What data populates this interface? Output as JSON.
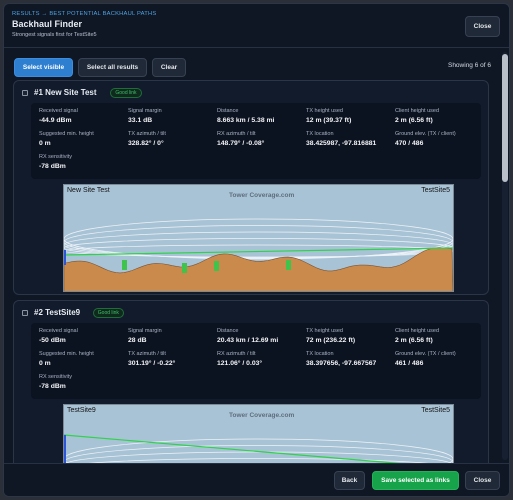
{
  "header": {
    "breadcrumb": "RESULTS → BEST POTENTIAL BACKHAUL PATHS",
    "title": "Backhaul Finder",
    "subtitle": "Strongest signals first for TestSite5",
    "close": "Close"
  },
  "toolbar": {
    "buttons": [
      "Select visible",
      "Select all results",
      "Clear"
    ],
    "status": "Showing 6 of 6"
  },
  "results": [
    {
      "title": "#1 New Site Test",
      "badge": "Good link",
      "fields": [
        {
          "label": "Received signal",
          "value": "-44.9 dBm"
        },
        {
          "label": "Signal margin",
          "value": "33.1 dB"
        },
        {
          "label": "Distance",
          "value": "8.663 km / 5.38 mi"
        },
        {
          "label": "TX height used",
          "value": "12 m (39.37 ft)"
        },
        {
          "label": "Client height used",
          "value": "2 m (6.56 ft)"
        },
        {
          "label": "Suggested min. height",
          "value": "0 m"
        },
        {
          "label": "TX azimuth / tilt",
          "value": "328.82° / 0°"
        },
        {
          "label": "RX azimuth / tilt",
          "value": "148.79° / -0.08°"
        },
        {
          "label": "TX location",
          "value": "38.425987, -97.816881"
        },
        {
          "label": "Ground elev. (TX / client)",
          "value": "470 / 486"
        },
        {
          "label": "RX sensitivity",
          "value": "-78 dBm"
        }
      ],
      "profile": {
        "left": "New Site Test",
        "right": "TestSite5",
        "watermark": "Tower Coverage.com"
      }
    },
    {
      "title": "#2 TestSite9",
      "badge": "Good link",
      "fields": [
        {
          "label": "Received signal",
          "value": "-50 dBm"
        },
        {
          "label": "Signal margin",
          "value": "28 dB"
        },
        {
          "label": "Distance",
          "value": "20.43 km / 12.69 mi"
        },
        {
          "label": "TX height used",
          "value": "72 m (236.22 ft)"
        },
        {
          "label": "Client height used",
          "value": "2 m (6.56 ft)"
        },
        {
          "label": "Suggested min. height",
          "value": "0 m"
        },
        {
          "label": "TX azimuth / tilt",
          "value": "301.19° / -0.22°"
        },
        {
          "label": "RX azimuth / tilt",
          "value": "121.06° / 0.03°"
        },
        {
          "label": "TX location",
          "value": "38.397656, -97.667567"
        },
        {
          "label": "Ground elev. (TX / client)",
          "value": "461 / 486"
        },
        {
          "label": "RX sensitivity",
          "value": "-78 dBm"
        }
      ],
      "profile": {
        "left": "TestSite9",
        "right": "TestSite5",
        "watermark": "Tower Coverage.com"
      }
    }
  ],
  "footer": {
    "buttons": [
      "Back",
      "Save selected as links",
      "Close"
    ]
  }
}
